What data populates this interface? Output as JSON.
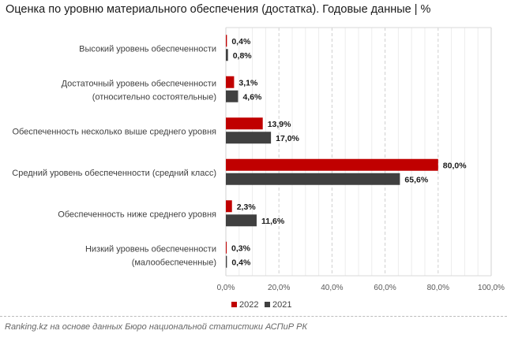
{
  "title": "Оценка по уровню материального обеспечения (достатка). Годовые данные | %",
  "footer": "Ranking.kz на основе данных Бюро национальной статистики АСПиР РК",
  "chart_data": {
    "type": "bar",
    "orientation": "horizontal",
    "categories": [
      [
        "Высокий уровень обеспеченности"
      ],
      [
        "Достаточный уровень обеспеченности",
        "(относительно состоятельные)"
      ],
      [
        "Обеспеченность несколько выше среднего уровня"
      ],
      [
        "Средний уровень обеспеченности (средний класс)"
      ],
      [
        "Обеспеченность ниже среднего уровня"
      ],
      [
        "Низкий уровень обеспеченности",
        "(малообеспеченные)"
      ]
    ],
    "series": [
      {
        "name": "2022",
        "color": "#c00000",
        "values": [
          0.4,
          3.1,
          13.9,
          80.0,
          2.3,
          0.3
        ],
        "labels": [
          "0,4%",
          "3,1%",
          "13,9%",
          "80,0%",
          "2,3%",
          "0,3%"
        ]
      },
      {
        "name": "2021",
        "color": "#404040",
        "values": [
          0.8,
          4.6,
          17.0,
          65.6,
          11.6,
          0.4
        ],
        "labels": [
          "0,8%",
          "4,6%",
          "17,0%",
          "65,6%",
          "11,6%",
          "0,4%"
        ]
      }
    ],
    "xlim": [
      0,
      100
    ],
    "xticks": [
      "0,0%",
      "20,0%",
      "40,0%",
      "60,0%",
      "80,0%",
      "100,0%"
    ],
    "grid": true,
    "legend": "bottom"
  }
}
